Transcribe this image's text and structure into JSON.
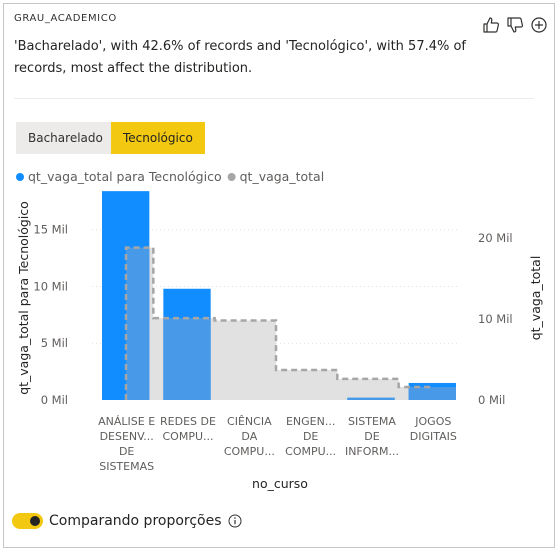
{
  "card": {
    "field_name": "GRAU_ACADEMICO",
    "summary": "'Bacharelado', with 42.6% of records and 'Tecnológico', with 57.4% of records, most affect the distribution."
  },
  "chips": [
    {
      "label": "Bacharelado",
      "selected": false
    },
    {
      "label": "Tecnológico",
      "selected": true
    }
  ],
  "toggle": {
    "label": "Comparando proporções",
    "on": true
  },
  "colors": {
    "series1": "#118dff",
    "series2": "#a6a6a6",
    "chip_selected": "#f2c811"
  },
  "icons": {
    "like": "thumbs-up-icon",
    "dislike": "thumbs-down-icon",
    "add": "add-icon",
    "info": "info-icon"
  },
  "chart_data": {
    "type": "bar",
    "legend_placement": "top-left",
    "xlabel": "no_curso",
    "ylabel": "qt_vaga_total para Tecnológico",
    "y2label": "qt_vaga_total",
    "categories": [
      [
        "ANÁLISE E",
        "DESENV...",
        "DE",
        "SISTEMAS"
      ],
      [
        "REDES DE",
        "COMPU..."
      ],
      [
        "CIÊNCIA",
        "DA",
        "COMPU..."
      ],
      [
        "ENGEN...",
        "DE",
        "COMPU..."
      ],
      [
        "SISTEMA",
        "DE",
        "INFORM..."
      ],
      [
        "JOGOS",
        "DIGITAIS"
      ]
    ],
    "ylim": [
      0,
      18500
    ],
    "yticks": [
      0,
      5000,
      10000,
      15000
    ],
    "ytick_labels": [
      "0 Mil",
      "5 Mil",
      "10 Mil",
      "15 Mil"
    ],
    "y2lim": [
      0,
      25900
    ],
    "y2ticks": [
      0,
      10000,
      20000
    ],
    "y2tick_labels": [
      "0 Mil",
      "10 Mil",
      "20 Mil"
    ],
    "series": [
      {
        "name": "qt_vaga_total para Tecnológico",
        "values": [
          18400,
          9800,
          0,
          0,
          200,
          1500
        ]
      },
      {
        "name": "qt_vaga_total",
        "values": [
          18800,
          10100,
          9800,
          3700,
          2600,
          1600
        ]
      }
    ]
  }
}
